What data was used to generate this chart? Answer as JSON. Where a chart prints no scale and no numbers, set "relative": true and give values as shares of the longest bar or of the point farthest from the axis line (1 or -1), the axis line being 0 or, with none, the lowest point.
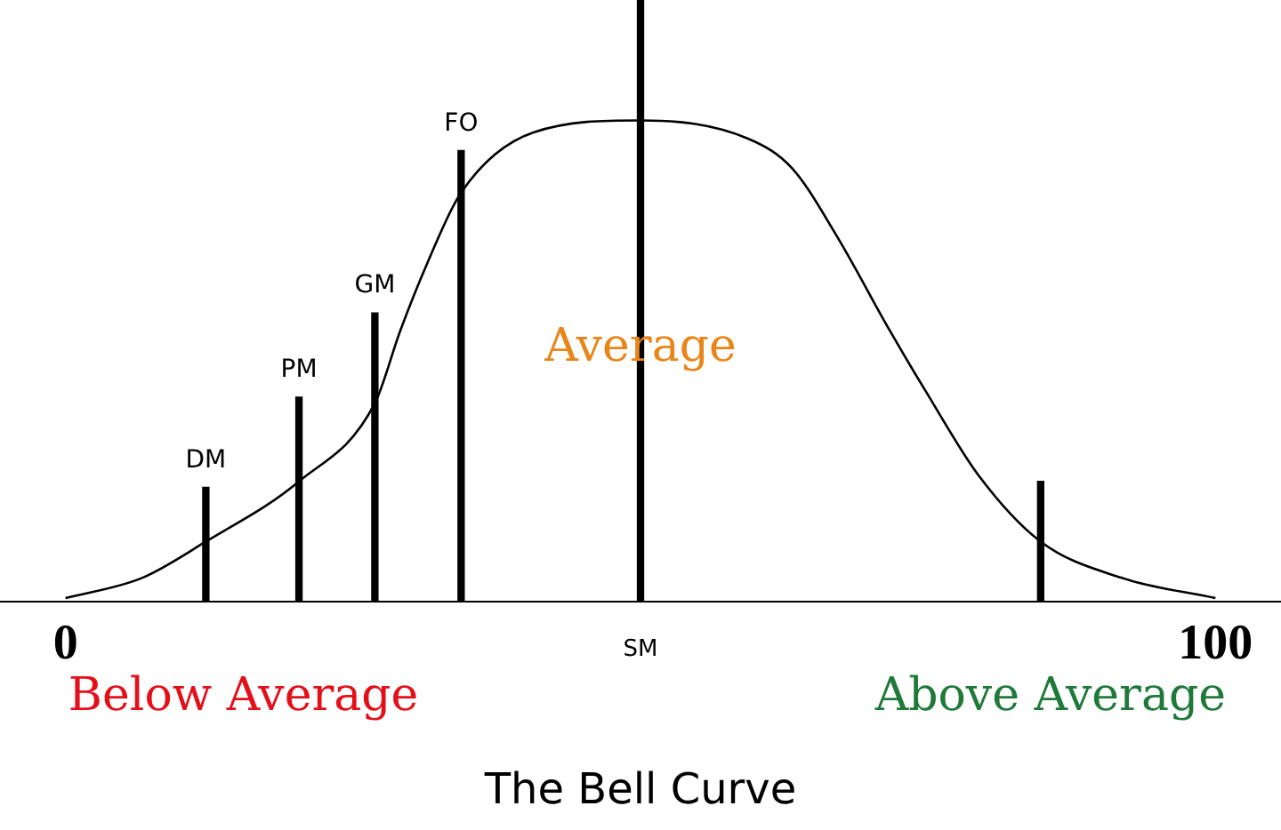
{
  "chart_data": {
    "type": "line",
    "title": "The Bell Curve",
    "relative": true,
    "xlim": [
      -5.7,
      105.7
    ],
    "xticks": [
      0,
      100
    ],
    "grid": false,
    "legend": false,
    "marker": "none",
    "series": [
      {
        "color": "#000000",
        "x": [
          0,
          6.7,
          12.2,
          20.3,
          26.9,
          29.1,
          31.4,
          34.4,
          40.7,
          50,
          59.3,
          63.2,
          67,
          71.7,
          74.8,
          79.4,
          84.8,
          91.8,
          100
        ],
        "values": [
          0.006,
          0.04,
          0.1,
          0.2,
          0.33,
          0.45,
          0.56,
          0.68,
          0.78,
          0.8,
          0.77,
          0.72,
          0.61,
          0.45,
          0.35,
          0.21,
          0.1,
          0.04,
          0.006
        ]
      },
      {
        "type": "bar",
        "color": "#000000",
        "x": [
          12.2,
          20.3,
          26.9,
          34.4,
          50,
          84.8
        ],
        "values": [
          0.19,
          0.34,
          0.48,
          0.75,
          1,
          0.2
        ]
      }
    ],
    "annotations": [
      {
        "text": "DM",
        "x": 12.2,
        "y": 0.19
      },
      {
        "text": "PM",
        "x": 20.3,
        "y": 0.34
      },
      {
        "text": "GM",
        "x": 26.9,
        "y": 0.48
      },
      {
        "text": "FO",
        "x": 34.4,
        "y": 0.75
      },
      "SM",
      {
        "text": "Average",
        "x": 50,
        "y": 0.42
      },
      "Below Average",
      "Above Average"
    ]
  }
}
